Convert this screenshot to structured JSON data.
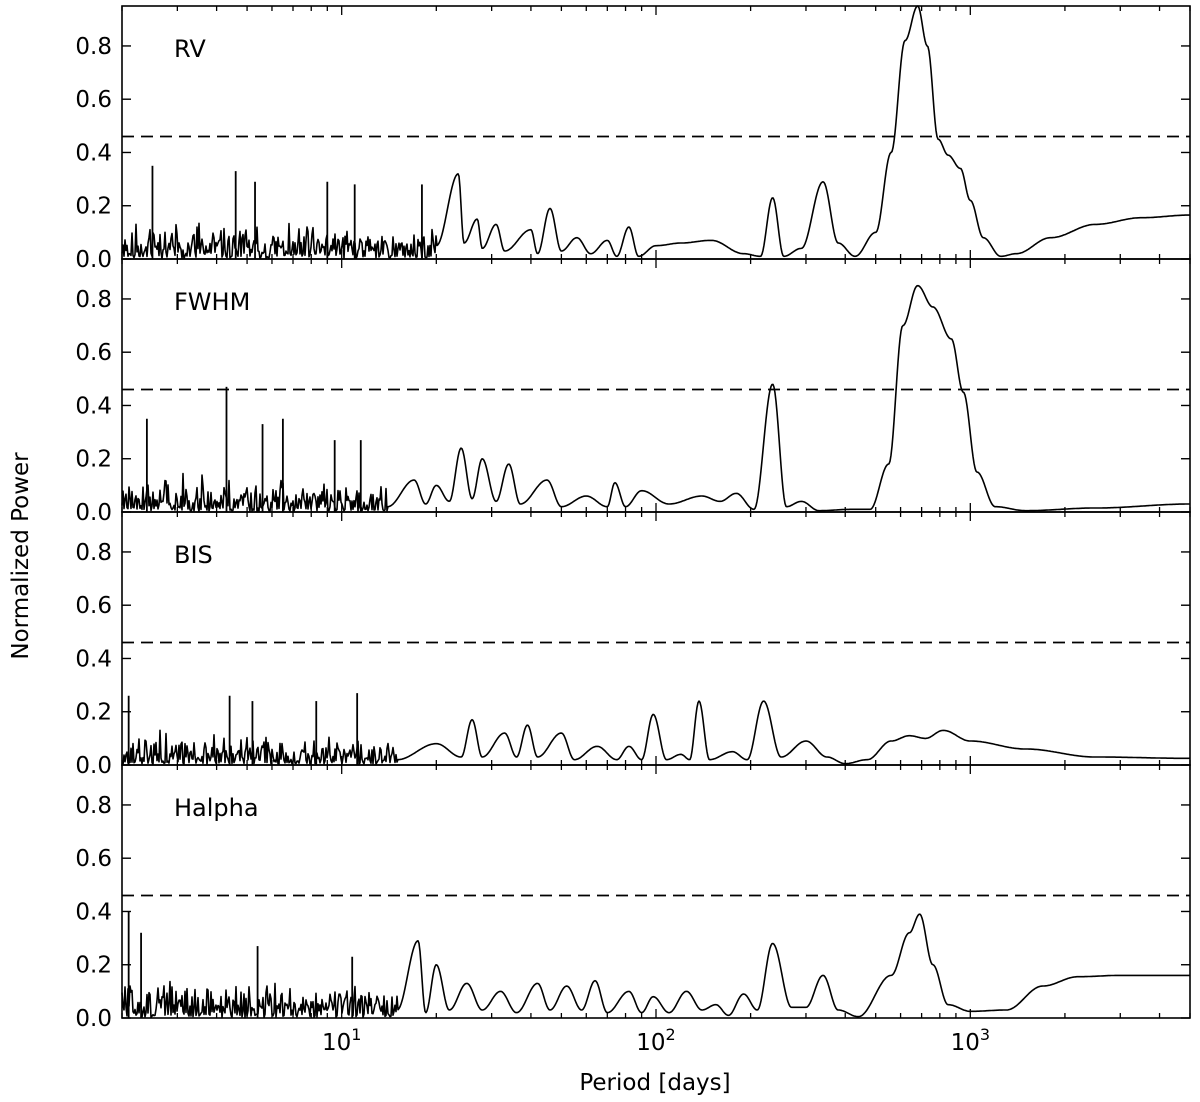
{
  "chart_data": {
    "type": "line",
    "xlabel": "Period [days]",
    "ylabel": "Normalized Power",
    "x_scale": "log",
    "xlim": [
      2,
      5000
    ],
    "ylim": [
      0,
      0.95
    ],
    "x_ticks": [
      {
        "value": 10,
        "label": "10",
        "exp": "1"
      },
      {
        "value": 100,
        "label": "10",
        "exp": "2"
      },
      {
        "value": 1000,
        "label": "10",
        "exp": "3"
      }
    ],
    "y_ticks": [
      "0.0",
      "0.2",
      "0.4",
      "0.6",
      "0.8"
    ],
    "y_tick_values": [
      0,
      0.2,
      0.4,
      0.6,
      0.8
    ],
    "grid": false,
    "threshold_style": "dashed",
    "panels": [
      {
        "label": "RV",
        "threshold": 0.46,
        "noise": {
          "from": 2,
          "to": 20,
          "base": 0.06,
          "amp": 0.1,
          "seed": 11
        },
        "spikes": [
          [
            2.5,
            0.35
          ],
          [
            4.6,
            0.33
          ],
          [
            5.3,
            0.29
          ],
          [
            9.0,
            0.29
          ],
          [
            11.0,
            0.28
          ],
          [
            18,
            0.28
          ]
        ],
        "points": [
          [
            20,
            0.05
          ],
          [
            23.5,
            0.32
          ],
          [
            24.5,
            0.06
          ],
          [
            27,
            0.15
          ],
          [
            28,
            0.04
          ],
          [
            31,
            0.13
          ],
          [
            33,
            0.03
          ],
          [
            40,
            0.11
          ],
          [
            42,
            0.02
          ],
          [
            46,
            0.19
          ],
          [
            50,
            0.03
          ],
          [
            56,
            0.08
          ],
          [
            62,
            0.02
          ],
          [
            70,
            0.07
          ],
          [
            75,
            0.01
          ],
          [
            82,
            0.12
          ],
          [
            88,
            0.01
          ],
          [
            100,
            0.05
          ],
          [
            120,
            0.06
          ],
          [
            150,
            0.07
          ],
          [
            190,
            0.02
          ],
          [
            215,
            0.01
          ],
          [
            235,
            0.23
          ],
          [
            255,
            0.01
          ],
          [
            290,
            0.04
          ],
          [
            340,
            0.29
          ],
          [
            380,
            0.06
          ],
          [
            430,
            0.01
          ],
          [
            500,
            0.1
          ],
          [
            560,
            0.4
          ],
          [
            620,
            0.82
          ],
          [
            680,
            0.95
          ],
          [
            730,
            0.8
          ],
          [
            790,
            0.45
          ],
          [
            850,
            0.39
          ],
          [
            930,
            0.34
          ],
          [
            1000,
            0.22
          ],
          [
            1100,
            0.08
          ],
          [
            1250,
            0.01
          ],
          [
            1400,
            0.02
          ],
          [
            1800,
            0.08
          ],
          [
            2500,
            0.13
          ],
          [
            3500,
            0.155
          ],
          [
            5000,
            0.165
          ]
        ]
      },
      {
        "label": "FWHM",
        "threshold": 0.46,
        "noise": {
          "from": 2,
          "to": 14,
          "base": 0.05,
          "amp": 0.11,
          "seed": 23
        },
        "spikes": [
          [
            2.4,
            0.35
          ],
          [
            4.3,
            0.47
          ],
          [
            5.6,
            0.33
          ],
          [
            6.5,
            0.35
          ],
          [
            9.5,
            0.27
          ],
          [
            11.5,
            0.27
          ]
        ],
        "points": [
          [
            14,
            0.02
          ],
          [
            17,
            0.12
          ],
          [
            18.5,
            0.03
          ],
          [
            20,
            0.1
          ],
          [
            22,
            0.04
          ],
          [
            24,
            0.24
          ],
          [
            26,
            0.05
          ],
          [
            28,
            0.2
          ],
          [
            31,
            0.04
          ],
          [
            34,
            0.18
          ],
          [
            37,
            0.03
          ],
          [
            45,
            0.12
          ],
          [
            50,
            0.02
          ],
          [
            60,
            0.06
          ],
          [
            70,
            0.02
          ],
          [
            74,
            0.11
          ],
          [
            80,
            0.02
          ],
          [
            90,
            0.08
          ],
          [
            110,
            0.03
          ],
          [
            140,
            0.06
          ],
          [
            160,
            0.04
          ],
          [
            180,
            0.07
          ],
          [
            205,
            0.01
          ],
          [
            235,
            0.48
          ],
          [
            260,
            0.02
          ],
          [
            290,
            0.04
          ],
          [
            330,
            0.005
          ],
          [
            420,
            0.01
          ],
          [
            480,
            0.01
          ],
          [
            550,
            0.18
          ],
          [
            610,
            0.7
          ],
          [
            680,
            0.85
          ],
          [
            760,
            0.77
          ],
          [
            870,
            0.65
          ],
          [
            950,
            0.45
          ],
          [
            1050,
            0.15
          ],
          [
            1200,
            0.02
          ],
          [
            1500,
            0.005
          ],
          [
            2500,
            0.015
          ],
          [
            5000,
            0.03
          ]
        ]
      },
      {
        "label": "BIS",
        "threshold": 0.46,
        "noise": {
          "from": 2,
          "to": 15,
          "base": 0.05,
          "amp": 0.09,
          "seed": 37
        },
        "spikes": [
          [
            2.1,
            0.26
          ],
          [
            4.4,
            0.26
          ],
          [
            5.2,
            0.24
          ],
          [
            8.3,
            0.24
          ],
          [
            11.2,
            0.27
          ]
        ],
        "points": [
          [
            15,
            0.02
          ],
          [
            20,
            0.08
          ],
          [
            24,
            0.03
          ],
          [
            26,
            0.17
          ],
          [
            28,
            0.03
          ],
          [
            33,
            0.12
          ],
          [
            36,
            0.03
          ],
          [
            39,
            0.15
          ],
          [
            42,
            0.03
          ],
          [
            50,
            0.12
          ],
          [
            55,
            0.02
          ],
          [
            65,
            0.07
          ],
          [
            75,
            0.02
          ],
          [
            82,
            0.07
          ],
          [
            90,
            0.02
          ],
          [
            98,
            0.19
          ],
          [
            108,
            0.02
          ],
          [
            120,
            0.04
          ],
          [
            128,
            0.02
          ],
          [
            137,
            0.24
          ],
          [
            148,
            0.02
          ],
          [
            175,
            0.05
          ],
          [
            195,
            0.02
          ],
          [
            220,
            0.24
          ],
          [
            250,
            0.03
          ],
          [
            300,
            0.09
          ],
          [
            350,
            0.03
          ],
          [
            400,
            0.005
          ],
          [
            470,
            0.02
          ],
          [
            560,
            0.09
          ],
          [
            640,
            0.11
          ],
          [
            720,
            0.1
          ],
          [
            820,
            0.13
          ],
          [
            1000,
            0.09
          ],
          [
            1500,
            0.06
          ],
          [
            2500,
            0.03
          ],
          [
            5000,
            0.025
          ]
        ]
      },
      {
        "label": "Halpha",
        "threshold": 0.46,
        "noise": {
          "from": 2,
          "to": 15,
          "base": 0.06,
          "amp": 0.1,
          "seed": 51
        },
        "spikes": [
          [
            2.1,
            0.4
          ],
          [
            2.3,
            0.32
          ],
          [
            5.4,
            0.27
          ],
          [
            10.8,
            0.23
          ]
        ],
        "points": [
          [
            15,
            0.03
          ],
          [
            17.5,
            0.29
          ],
          [
            18.5,
            0.02
          ],
          [
            20,
            0.2
          ],
          [
            22,
            0.03
          ],
          [
            25,
            0.13
          ],
          [
            28,
            0.03
          ],
          [
            32,
            0.1
          ],
          [
            36,
            0.02
          ],
          [
            42,
            0.13
          ],
          [
            46,
            0.03
          ],
          [
            52,
            0.12
          ],
          [
            58,
            0.03
          ],
          [
            64,
            0.14
          ],
          [
            70,
            0.02
          ],
          [
            82,
            0.1
          ],
          [
            90,
            0.02
          ],
          [
            98,
            0.08
          ],
          [
            110,
            0.02
          ],
          [
            125,
            0.1
          ],
          [
            140,
            0.03
          ],
          [
            155,
            0.05
          ],
          [
            170,
            0.01
          ],
          [
            190,
            0.09
          ],
          [
            210,
            0.03
          ],
          [
            235,
            0.28
          ],
          [
            270,
            0.04
          ],
          [
            300,
            0.04
          ],
          [
            340,
            0.16
          ],
          [
            380,
            0.03
          ],
          [
            440,
            0.005
          ],
          [
            560,
            0.16
          ],
          [
            640,
            0.32
          ],
          [
            690,
            0.39
          ],
          [
            760,
            0.2
          ],
          [
            850,
            0.05
          ],
          [
            1000,
            0.025
          ],
          [
            1300,
            0.03
          ],
          [
            1700,
            0.12
          ],
          [
            2200,
            0.155
          ],
          [
            3000,
            0.16
          ],
          [
            5000,
            0.16
          ]
        ]
      }
    ]
  }
}
